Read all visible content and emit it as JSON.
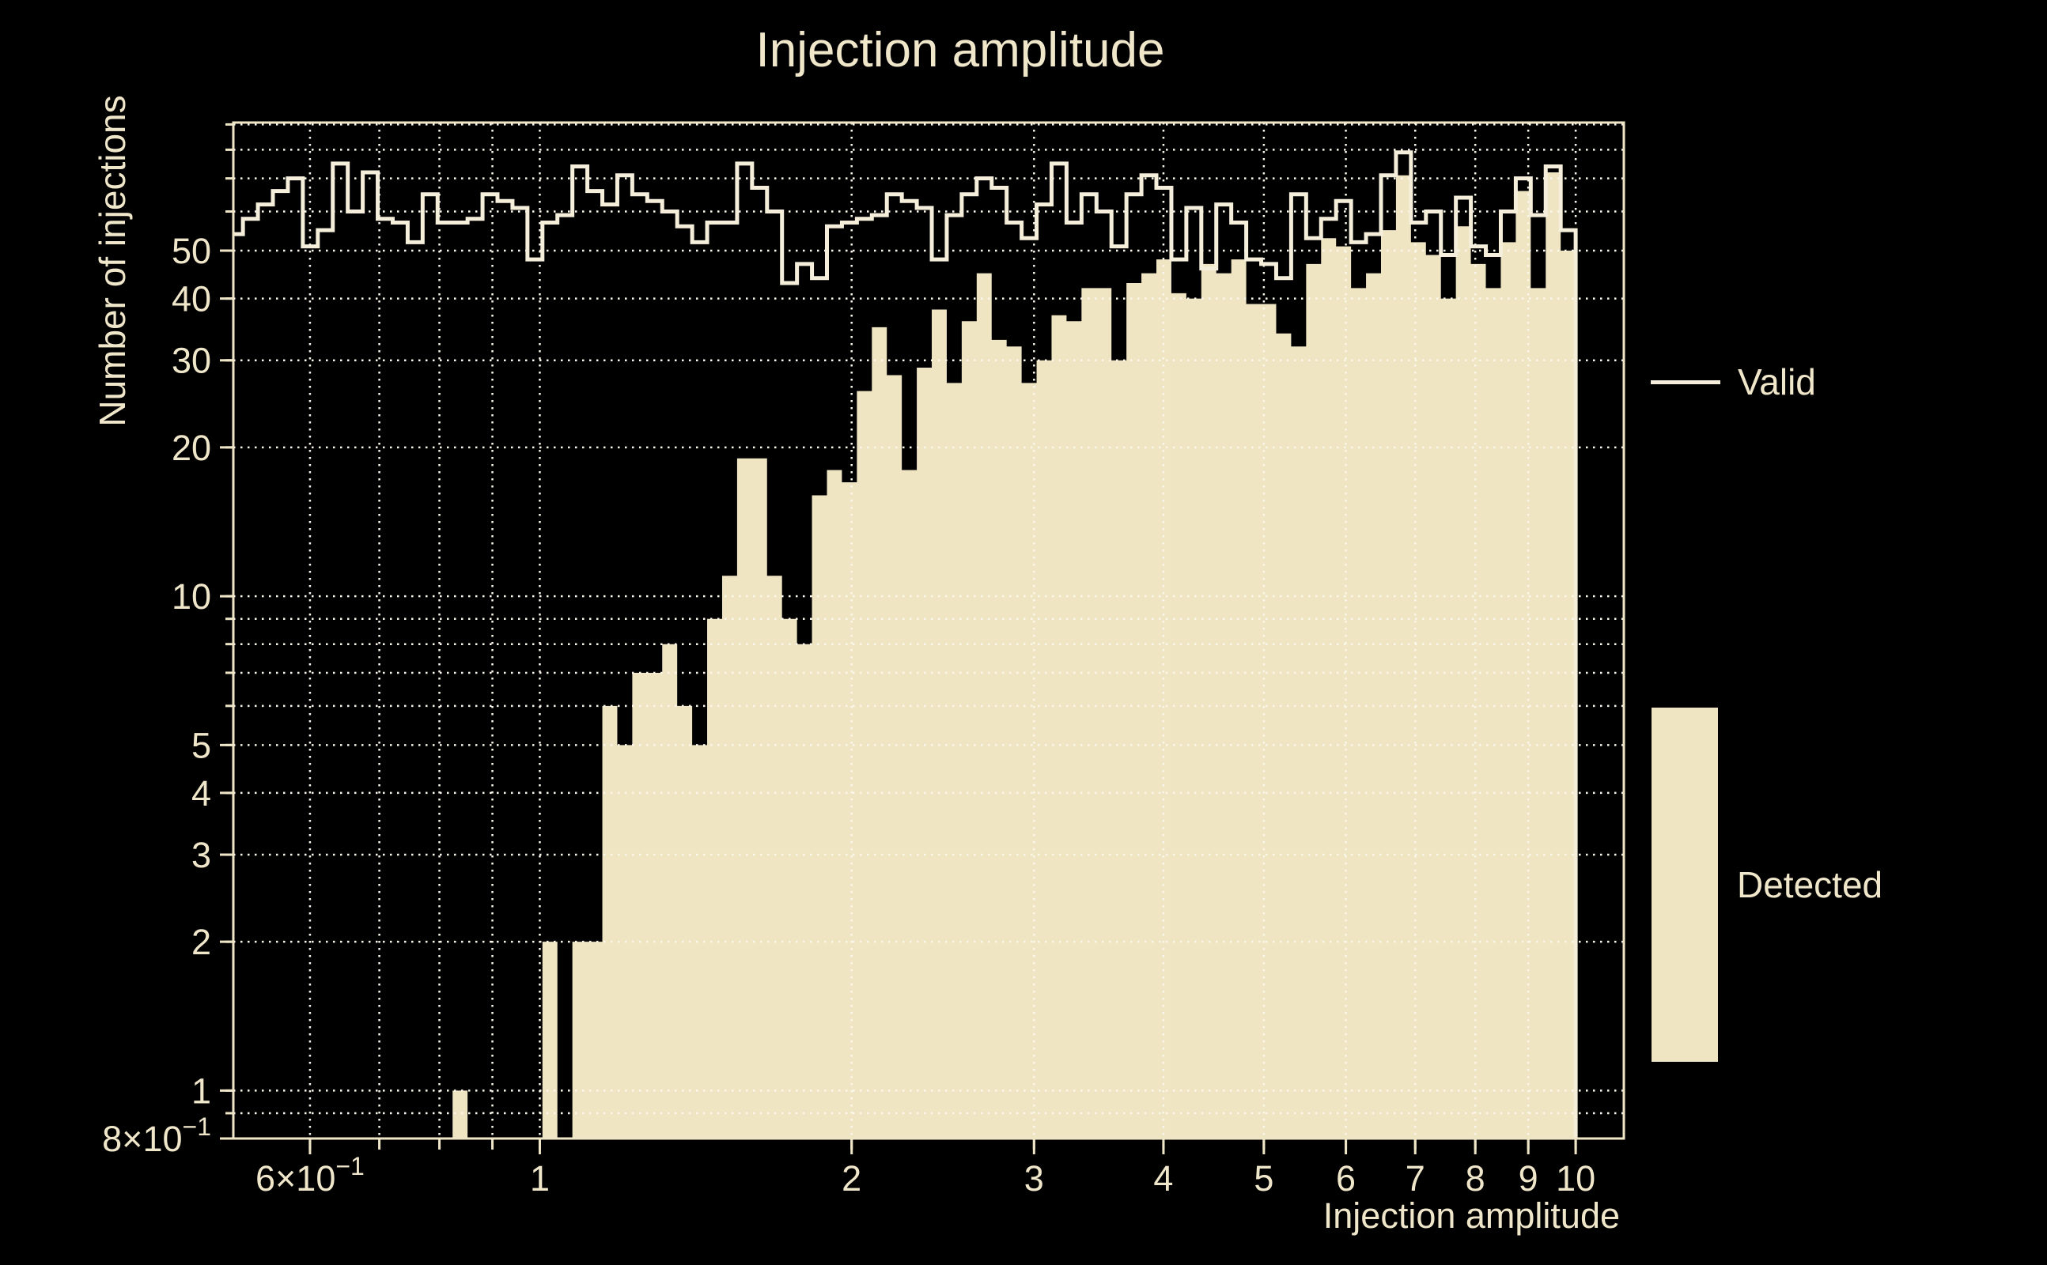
{
  "title": "Injection amplitude",
  "x_axis": {
    "label": "Injection amplitude",
    "scale": "log",
    "min": 0.506,
    "max": 11.13,
    "major_ticks": [
      {
        "value": 0.6,
        "label": "6×10^−1"
      },
      {
        "value": 1,
        "label": "1"
      },
      {
        "value": 2,
        "label": "2"
      },
      {
        "value": 3,
        "label": "3"
      },
      {
        "value": 4,
        "label": "4"
      },
      {
        "value": 5,
        "label": "5"
      },
      {
        "value": 6,
        "label": "6"
      },
      {
        "value": 7,
        "label": "7"
      },
      {
        "value": 8,
        "label": "8"
      },
      {
        "value": 9,
        "label": "9"
      },
      {
        "value": 10,
        "label": "10"
      }
    ],
    "gridlines": [
      0.6,
      0.7,
      0.8,
      0.9,
      1,
      2,
      3,
      4,
      5,
      6,
      7,
      8,
      9,
      10
    ]
  },
  "y_axis": {
    "label": "Number of injections",
    "scale": "log",
    "min": 0.8,
    "max": 90.8,
    "major_ticks": [
      {
        "value": 0.8,
        "label": "8×10^−1"
      },
      {
        "value": 1,
        "label": "1"
      },
      {
        "value": 2,
        "label": "2"
      },
      {
        "value": 3,
        "label": "3"
      },
      {
        "value": 4,
        "label": "4"
      },
      {
        "value": 5,
        "label": "5"
      },
      {
        "value": 10,
        "label": "10"
      },
      {
        "value": 20,
        "label": "20"
      },
      {
        "value": 30,
        "label": "30"
      },
      {
        "value": 40,
        "label": "40"
      },
      {
        "value": 50,
        "label": "50"
      }
    ],
    "gridlines": [
      0.9,
      1,
      2,
      3,
      4,
      5,
      6,
      7,
      8,
      9,
      10,
      20,
      30,
      40,
      50,
      60,
      70,
      80,
      90
    ]
  },
  "legend": {
    "items": [
      {
        "label": "Valid",
        "swatch": "line"
      },
      {
        "label": "Detected",
        "swatch": "box"
      }
    ]
  },
  "colors": {
    "background": "#000000",
    "detected_fill": "#EFE5C3",
    "valid_line": "#F4EEDB",
    "grid": "#FBF7EB",
    "frame": "#EFE6C8",
    "text": "#F0E7CB"
  },
  "chart_data": {
    "type": "bar",
    "subtype": "log-log histogram, 90 log-spaced bins",
    "title": "Injection amplitude",
    "xlabel": "Injection amplitude",
    "ylabel": "Number of injections",
    "xlim": [
      0.506,
      11.13
    ],
    "ylim": [
      0.8,
      90.8
    ],
    "bin_start": 0.5,
    "bin_end": 10,
    "n_bins": 90,
    "legend_position": "right",
    "grid": "dotted, all log decades",
    "series": [
      {
        "name": "Valid",
        "style": "step-outline",
        "values": [
          54,
          58,
          62,
          66,
          70,
          51,
          55,
          75,
          60,
          72,
          58,
          57,
          52,
          65,
          57,
          57,
          58,
          65,
          63,
          61,
          48,
          57,
          59,
          74,
          66,
          62,
          71,
          65,
          63,
          60,
          56,
          52,
          57,
          57,
          75,
          67,
          60,
          43,
          47,
          44,
          56,
          57,
          58,
          59,
          65,
          63,
          61,
          48,
          59,
          65,
          70,
          67,
          57,
          53,
          62,
          75,
          57,
          65,
          60,
          51,
          65,
          71,
          67,
          48,
          61,
          46,
          62,
          57,
          48,
          47,
          44,
          65,
          53,
          58,
          63,
          52,
          54,
          71,
          79,
          57,
          60,
          49,
          64,
          51,
          49,
          60,
          70,
          59,
          74,
          55
        ]
      },
      {
        "name": "Detected",
        "style": "filled",
        "values": [
          0,
          0,
          0,
          0,
          0,
          0,
          0,
          0,
          0,
          0,
          0,
          0,
          0,
          0,
          0,
          1,
          0,
          0,
          0,
          0,
          0,
          2,
          0,
          2,
          2,
          6,
          5,
          7,
          7,
          8,
          6,
          5,
          9,
          11,
          19,
          19,
          11,
          9,
          8,
          16,
          18,
          17,
          26,
          35,
          28,
          18,
          29,
          38,
          27,
          36,
          45,
          33,
          32,
          27,
          30,
          37,
          36,
          42,
          42,
          30,
          43,
          45,
          48,
          41,
          40,
          47,
          45,
          48,
          39,
          39,
          34,
          32,
          47,
          53,
          51,
          42,
          45,
          55,
          71,
          52,
          49,
          40,
          56,
          47,
          42,
          52,
          66,
          42,
          72,
          50
        ]
      }
    ]
  }
}
